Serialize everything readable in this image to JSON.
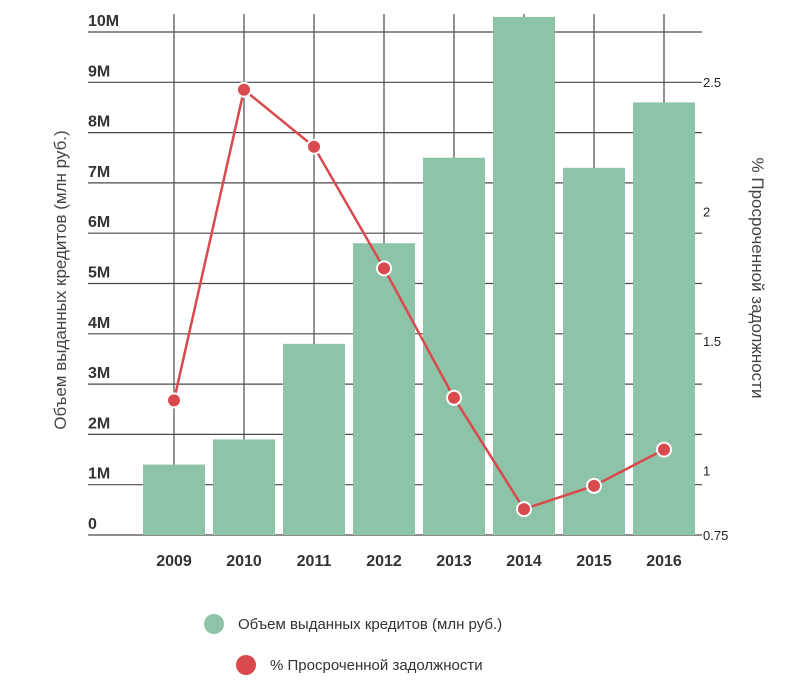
{
  "chart_data": {
    "type": "bar",
    "categories": [
      "2009",
      "2010",
      "2011",
      "2012",
      "2013",
      "2014",
      "2015",
      "2016"
    ],
    "series": [
      {
        "name": "Объем выданных кредитов (млн руб.)",
        "type": "bar",
        "axis": "left",
        "color": "#8dc3a7",
        "values": [
          1400000,
          1900000,
          3800000,
          5800000,
          7500000,
          10300000,
          7300000,
          8600000
        ]
      },
      {
        "name": "% Просроченной задолжности",
        "type": "line",
        "axis": "right",
        "color": "#d94a4e",
        "values": [
          1.27,
          2.47,
          2.25,
          1.78,
          1.28,
          0.85,
          0.94,
          1.08
        ]
      }
    ],
    "ylabel": "Объем выданных кредитов (млн руб.)",
    "ylabel_right": "% Просроченной задолжности",
    "ylim": [
      0,
      10000000
    ],
    "ylim_right": [
      0.75,
      2.5
    ],
    "yticks": [
      {
        "value": 0,
        "label": "0"
      },
      {
        "value": 1000000,
        "label": "1M"
      },
      {
        "value": 2000000,
        "label": "2M"
      },
      {
        "value": 3000000,
        "label": "3M"
      },
      {
        "value": 4000000,
        "label": "4M"
      },
      {
        "value": 5000000,
        "label": "5M"
      },
      {
        "value": 6000000,
        "label": "6M"
      },
      {
        "value": 7000000,
        "label": "7M"
      },
      {
        "value": 8000000,
        "label": "8M"
      },
      {
        "value": 9000000,
        "label": "9M"
      },
      {
        "value": 10000000,
        "label": "10M"
      }
    ],
    "yticks_right": [
      {
        "value": 0.75,
        "label": "0.75"
      },
      {
        "value": 1,
        "label": "1"
      },
      {
        "value": 1.5,
        "label": "1.5"
      },
      {
        "value": 2,
        "label": "2"
      },
      {
        "value": 2.5,
        "label": "2.5"
      }
    ],
    "grid": true,
    "legend_position": "bottom"
  },
  "legend": {
    "bar_label": "Объем выданных кредитов (млн руб.)",
    "line_label": "% Просроченной задолжности"
  }
}
